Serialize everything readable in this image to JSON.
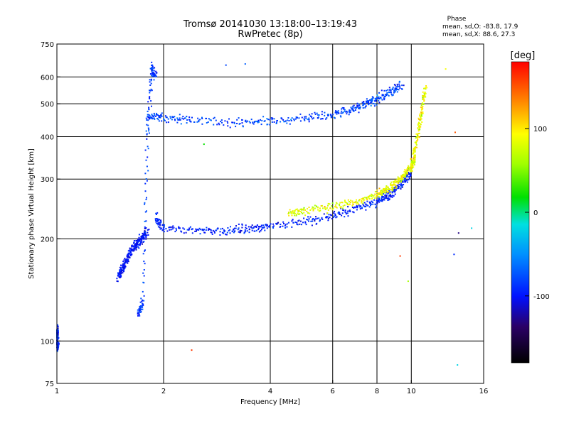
{
  "chart_data": {
    "type": "scatter",
    "title": "Tromsø 20141030 13:18:00–13:19:43",
    "subtitle": "RwPretec (8p)",
    "xlabel": "Frequency [MHz]",
    "ylabel": "Stationary phase Virtual Height [km]",
    "x_scale": "log",
    "y_scale": "log",
    "xlim": [
      1,
      16
    ],
    "ylim": [
      75,
      750
    ],
    "x_ticks": [
      1,
      2,
      4,
      6,
      8,
      10,
      16
    ],
    "y_ticks": [
      75,
      100,
      200,
      300,
      400,
      500,
      600,
      750
    ],
    "grid_x": [
      2,
      4,
      6,
      8,
      10
    ],
    "grid_y": [
      100,
      200,
      300,
      400,
      500,
      600
    ],
    "colorbar": {
      "label": "[deg]",
      "range": [
        -180,
        180
      ],
      "ticks": [
        -100,
        0,
        100
      ],
      "colormap": "rainbow"
    },
    "phase_stats": {
      "heading": "Phase",
      "o_mode": "mean, sd,O: -83.8, 17.9",
      "x_mode": "mean, sd,X: 88.6, 27.3"
    },
    "traces": [
      {
        "x": [
          0.0,
          0.09,
          0.18,
          0.26,
          0.38,
          0.45,
          0.55,
          0.66
        ],
        "y": [
          95,
          96,
          97,
          98,
          102,
          104,
          106,
          110
        ],
        "phase_mean": -90,
        "phase_sd": 25
      },
      {
        "x": [
          1.48,
          1.52,
          1.55,
          1.6,
          1.66,
          1.7,
          1.75,
          1.8
        ],
        "y": [
          155,
          160,
          168,
          180,
          190,
          196,
          202,
          210
        ],
        "phase_mean": -100,
        "phase_sd": 15
      },
      {
        "x": [
          1.7,
          1.75,
          1.8,
          1.85,
          1.9
        ],
        "y": [
          120,
          130,
          400,
          640,
          600
        ],
        "phase_mean": -85,
        "phase_sd": 20
      },
      {
        "x": [
          1.8,
          2.0,
          2.4,
          3.2,
          4.0,
          5.0,
          6.0,
          6.8,
          7.5,
          8.0,
          8.8,
          9.4
        ],
        "y": [
          460,
          455,
          448,
          440,
          445,
          452,
          465,
          480,
          500,
          515,
          545,
          570
        ],
        "phase_mean": -80,
        "phase_sd": 25
      },
      {
        "x": [
          1.9,
          2.0,
          2.5,
          3.0,
          3.5,
          4.0,
          5.0,
          6.0,
          7.0,
          8.0,
          8.5,
          9.0,
          9.5,
          10.0
        ],
        "y": [
          230,
          215,
          212,
          212,
          214,
          218,
          225,
          235,
          245,
          258,
          266,
          278,
          295,
          315
        ],
        "phase_mean": -95,
        "phase_sd": 18
      },
      {
        "x": [
          4.5,
          5.0,
          6.0,
          7.0,
          8.0,
          8.5,
          9.0,
          9.5,
          10.0,
          10.2
        ],
        "y": [
          238,
          242,
          250,
          258,
          270,
          280,
          290,
          305,
          325,
          345
        ],
        "phase_mean": 85,
        "phase_sd": 30
      },
      {
        "x": [
          10.0,
          10.2,
          10.5,
          10.7,
          11.0
        ],
        "y": [
          320,
          360,
          420,
          480,
          560
        ],
        "phase_mean": 90,
        "phase_sd": 35
      }
    ],
    "isolated_points": [
      {
        "x": 3.0,
        "y": 650,
        "phase": -80
      },
      {
        "x": 3.4,
        "y": 655,
        "phase": -70
      },
      {
        "x": 2.6,
        "y": 380,
        "phase": 20
      },
      {
        "x": 13.3,
        "y": 412,
        "phase": 150
      },
      {
        "x": 13.6,
        "y": 208,
        "phase": -130
      },
      {
        "x": 14.8,
        "y": 215,
        "phase": -20
      },
      {
        "x": 13.2,
        "y": 180,
        "phase": -90
      },
      {
        "x": 9.8,
        "y": 150,
        "phase": 60
      },
      {
        "x": 9.3,
        "y": 178,
        "phase": 160
      },
      {
        "x": 13.5,
        "y": 85,
        "phase": -20
      },
      {
        "x": 2.4,
        "y": 94,
        "phase": 160
      },
      {
        "x": 12.5,
        "y": 633,
        "phase": 90
      }
    ]
  }
}
